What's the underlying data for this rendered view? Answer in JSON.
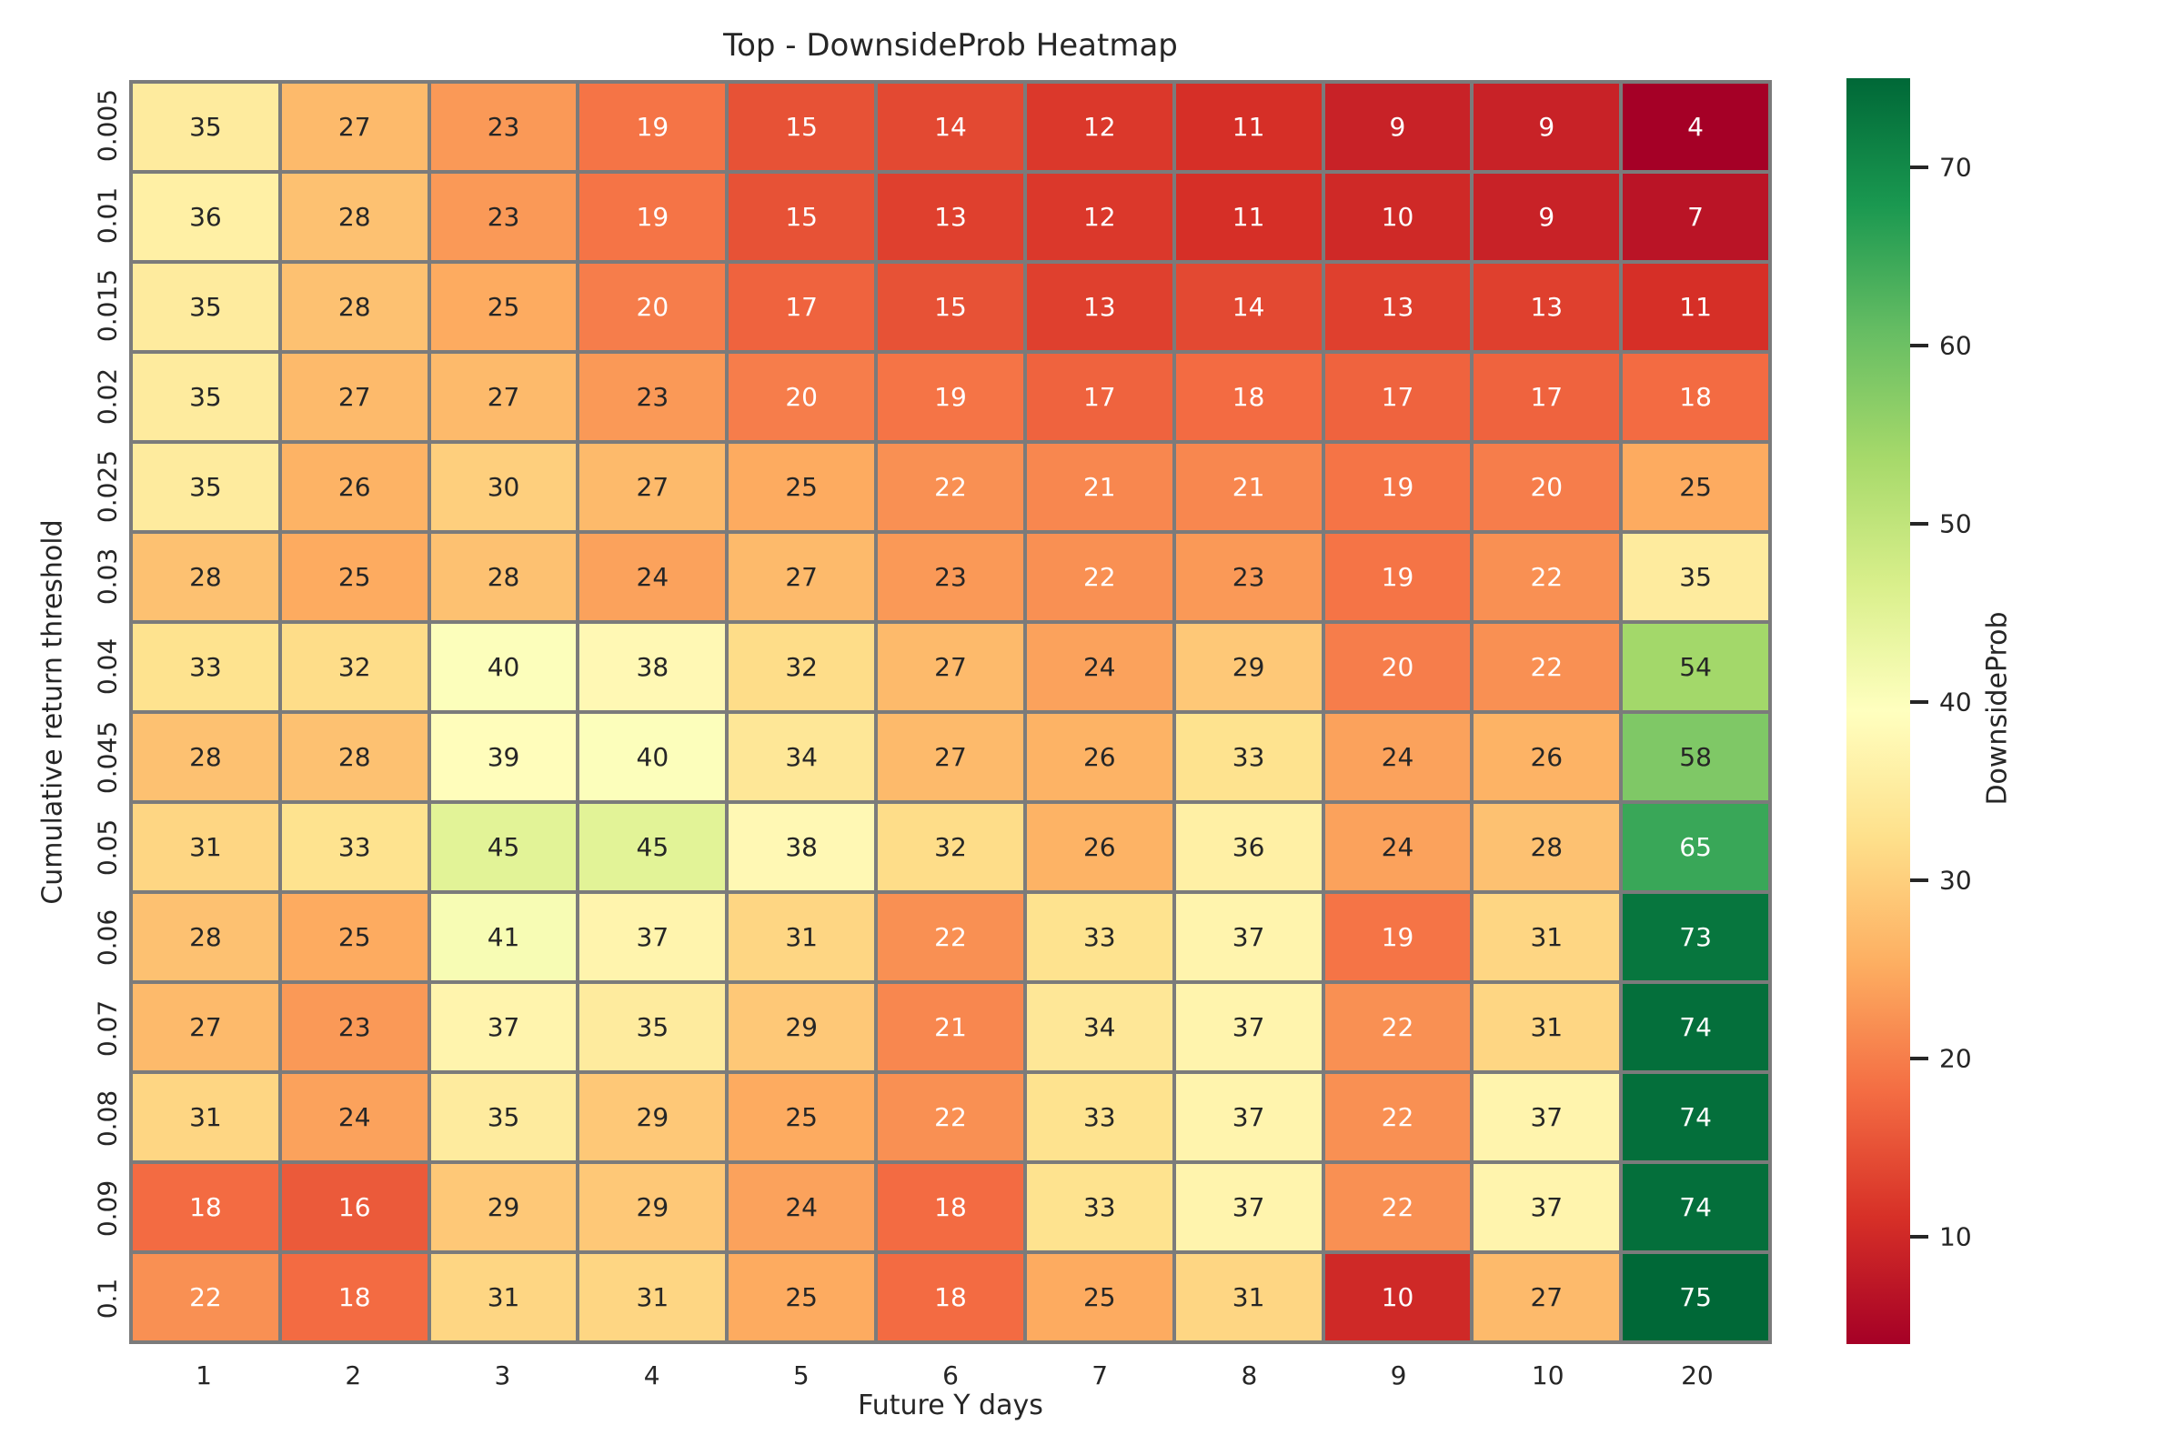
{
  "title": "Top - DownsideProb Heatmap",
  "chart_data": {
    "type": "heatmap",
    "title": "Top - DownsideProb Heatmap",
    "xlabel": "Future Y days",
    "ylabel": "Cumulative return threshold",
    "colorbar_label": "DownsideProb",
    "x_labels": [
      "1",
      "2",
      "3",
      "4",
      "5",
      "6",
      "7",
      "8",
      "9",
      "10",
      "20"
    ],
    "y_labels": [
      "0.005",
      "0.01",
      "0.015",
      "0.02",
      "0.025",
      "0.03",
      "0.04",
      "0.045",
      "0.05",
      "0.06",
      "0.07",
      "0.08",
      "0.09",
      "0.1"
    ],
    "values": [
      [
        35,
        27,
        23,
        19,
        15,
        14,
        12,
        11,
        9,
        9,
        4
      ],
      [
        36,
        28,
        23,
        19,
        15,
        13,
        12,
        11,
        10,
        9,
        7
      ],
      [
        35,
        28,
        25,
        20,
        17,
        15,
        13,
        14,
        13,
        13,
        11
      ],
      [
        35,
        27,
        27,
        23,
        20,
        19,
        17,
        18,
        17,
        17,
        18
      ],
      [
        35,
        26,
        30,
        27,
        25,
        22,
        21,
        21,
        19,
        20,
        25
      ],
      [
        28,
        25,
        28,
        24,
        27,
        23,
        22,
        23,
        19,
        22,
        35
      ],
      [
        33,
        32,
        40,
        38,
        32,
        27,
        24,
        29,
        20,
        22,
        54
      ],
      [
        28,
        28,
        39,
        40,
        34,
        27,
        26,
        33,
        24,
        26,
        58
      ],
      [
        31,
        33,
        45,
        45,
        38,
        32,
        26,
        36,
        24,
        28,
        65
      ],
      [
        28,
        25,
        41,
        37,
        31,
        22,
        33,
        37,
        19,
        31,
        73
      ],
      [
        27,
        23,
        37,
        35,
        29,
        21,
        34,
        37,
        22,
        31,
        74
      ],
      [
        31,
        24,
        35,
        29,
        25,
        22,
        33,
        37,
        22,
        37,
        74
      ],
      [
        18,
        16,
        29,
        29,
        24,
        18,
        33,
        37,
        22,
        37,
        74
      ],
      [
        22,
        18,
        31,
        31,
        25,
        18,
        25,
        31,
        10,
        27,
        75
      ]
    ],
    "vmin": 4,
    "vmax": 75,
    "colorbar_ticks": [
      10,
      20,
      30,
      40,
      50,
      60,
      70
    ],
    "colormap": "RdYlGn",
    "colormap_stops": [
      "#a50026",
      "#d73027",
      "#f46d43",
      "#fdae61",
      "#fee08b",
      "#ffffbf",
      "#d9ef8b",
      "#a6d96a",
      "#66bd63",
      "#1a9850",
      "#006837"
    ],
    "grid_line_color": "#7b7b7b",
    "annot_dark_text": "#262626",
    "annot_light_text": "#ffffff",
    "legend_position": "right",
    "grid": "on"
  }
}
